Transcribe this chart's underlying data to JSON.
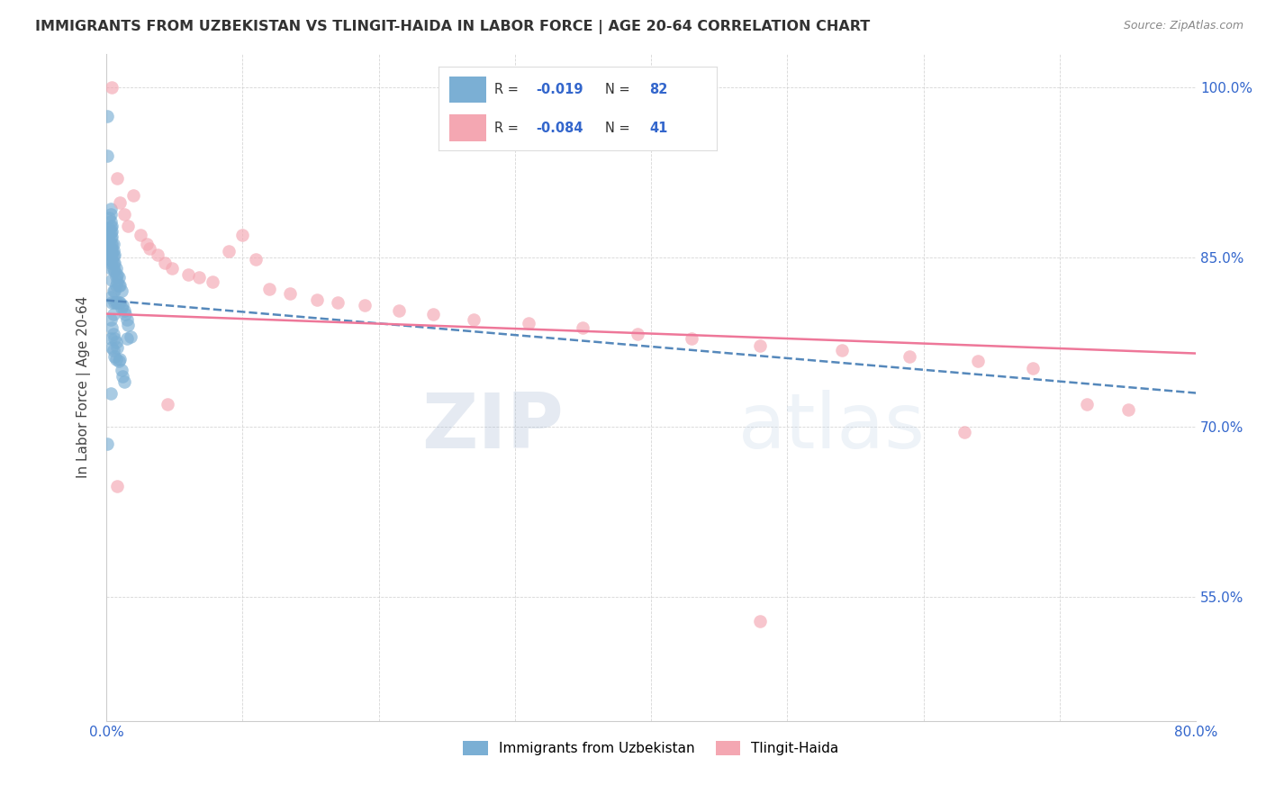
{
  "title": "IMMIGRANTS FROM UZBEKISTAN VS TLINGIT-HAIDA IN LABOR FORCE | AGE 20-64 CORRELATION CHART",
  "source": "Source: ZipAtlas.com",
  "ylabel": "In Labor Force | Age 20-64",
  "xlim": [
    0.0,
    0.8
  ],
  "ylim": [
    0.44,
    1.03
  ],
  "xticks": [
    0.0,
    0.1,
    0.2,
    0.3,
    0.4,
    0.5,
    0.6,
    0.7,
    0.8
  ],
  "xticklabels": [
    "0.0%",
    "",
    "",
    "",
    "",
    "",
    "",
    "",
    "80.0%"
  ],
  "ytick_positions": [
    0.55,
    0.7,
    0.85,
    1.0
  ],
  "ytick_labels": [
    "55.0%",
    "70.0%",
    "85.0%",
    "100.0%"
  ],
  "color_blue": "#7BAFD4",
  "color_pink": "#F4A7B2",
  "color_blue_line": "#5588BB",
  "color_pink_line": "#EE7799",
  "watermark_zip": "ZIP",
  "watermark_atlas": "atlas",
  "series1_x": [
    0.001,
    0.001,
    0.001,
    0.002,
    0.002,
    0.002,
    0.002,
    0.002,
    0.002,
    0.002,
    0.003,
    0.003,
    0.003,
    0.003,
    0.003,
    0.003,
    0.003,
    0.003,
    0.003,
    0.003,
    0.003,
    0.003,
    0.003,
    0.004,
    0.004,
    0.004,
    0.004,
    0.004,
    0.004,
    0.004,
    0.004,
    0.004,
    0.005,
    0.005,
    0.005,
    0.005,
    0.005,
    0.005,
    0.005,
    0.006,
    0.006,
    0.006,
    0.006,
    0.006,
    0.007,
    0.007,
    0.007,
    0.007,
    0.008,
    0.008,
    0.008,
    0.009,
    0.009,
    0.009,
    0.01,
    0.01,
    0.011,
    0.011,
    0.012,
    0.013,
    0.014,
    0.015,
    0.015,
    0.016,
    0.018,
    0.003,
    0.003,
    0.004,
    0.004,
    0.005,
    0.005,
    0.006,
    0.006,
    0.007,
    0.007,
    0.008,
    0.009,
    0.01,
    0.011,
    0.012,
    0.013,
    0.003
  ],
  "series1_y": [
    0.975,
    0.94,
    0.685,
    0.885,
    0.875,
    0.87,
    0.865,
    0.862,
    0.858,
    0.855,
    0.893,
    0.888,
    0.882,
    0.877,
    0.872,
    0.867,
    0.862,
    0.857,
    0.852,
    0.848,
    0.845,
    0.84,
    0.815,
    0.878,
    0.873,
    0.868,
    0.862,
    0.857,
    0.852,
    0.847,
    0.83,
    0.81,
    0.862,
    0.856,
    0.851,
    0.845,
    0.84,
    0.82,
    0.8,
    0.852,
    0.845,
    0.838,
    0.82,
    0.81,
    0.84,
    0.833,
    0.825,
    0.81,
    0.835,
    0.828,
    0.81,
    0.832,
    0.825,
    0.81,
    0.825,
    0.81,
    0.82,
    0.805,
    0.808,
    0.803,
    0.8,
    0.795,
    0.778,
    0.79,
    0.78,
    0.795,
    0.778,
    0.788,
    0.77,
    0.782,
    0.768,
    0.778,
    0.762,
    0.775,
    0.76,
    0.77,
    0.758,
    0.76,
    0.75,
    0.745,
    0.74,
    0.73
  ],
  "series2_x": [
    0.004,
    0.008,
    0.01,
    0.013,
    0.016,
    0.02,
    0.025,
    0.03,
    0.032,
    0.038,
    0.043,
    0.048,
    0.06,
    0.068,
    0.078,
    0.09,
    0.1,
    0.11,
    0.12,
    0.135,
    0.155,
    0.17,
    0.19,
    0.215,
    0.24,
    0.27,
    0.31,
    0.35,
    0.39,
    0.43,
    0.48,
    0.54,
    0.59,
    0.64,
    0.68,
    0.72,
    0.75,
    0.008,
    0.045,
    0.48,
    0.63
  ],
  "series2_y": [
    1.0,
    0.92,
    0.898,
    0.888,
    0.878,
    0.905,
    0.87,
    0.862,
    0.858,
    0.852,
    0.845,
    0.84,
    0.835,
    0.832,
    0.828,
    0.855,
    0.87,
    0.848,
    0.822,
    0.818,
    0.812,
    0.81,
    0.808,
    0.803,
    0.8,
    0.795,
    0.792,
    0.788,
    0.782,
    0.778,
    0.772,
    0.768,
    0.762,
    0.758,
    0.752,
    0.72,
    0.715,
    0.648,
    0.72,
    0.528,
    0.695
  ],
  "trend1_x0": 0.0,
  "trend1_y0": 0.812,
  "trend1_x1": 0.8,
  "trend1_y1": 0.73,
  "trend2_x0": 0.0,
  "trend2_y0": 0.8,
  "trend2_x1": 0.8,
  "trend2_y1": 0.765
}
